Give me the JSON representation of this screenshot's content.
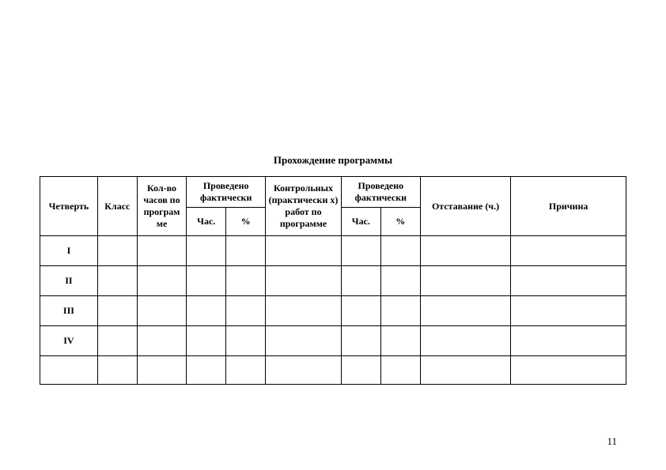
{
  "title": "Прохождение программы",
  "headers": {
    "quarter": "Четверть",
    "class": "Класс",
    "hours_by_program": "Кол-во часов по програм ме",
    "conducted_actually_1": "Проведено фактически",
    "hrs": "Час.",
    "pct": "%",
    "control_works": "Контрольных (практически х) работ по программе",
    "conducted_actually_2": "Проведено фактически",
    "lag": "Отставание (ч.)",
    "reason": "Причина"
  },
  "rows": [
    {
      "quarter": "I"
    },
    {
      "quarter": "II"
    },
    {
      "quarter": "III"
    },
    {
      "quarter": "IV"
    },
    {
      "quarter": ""
    }
  ],
  "pageNumber": "11"
}
